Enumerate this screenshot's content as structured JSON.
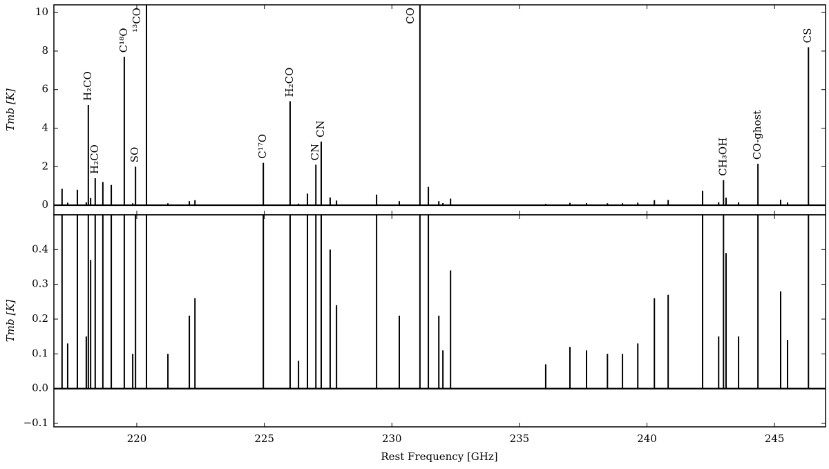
{
  "chart_data": {
    "type": "stem",
    "xlabel": "Rest Frequency [GHz]",
    "xlim": [
      216.75,
      247.0
    ],
    "xticks": [
      220,
      225,
      230,
      235,
      240,
      245
    ],
    "x": [
      217.07,
      217.29,
      217.67,
      218.02,
      218.1,
      218.19,
      218.37,
      218.67,
      219.0,
      219.51,
      219.84,
      219.95,
      220.38,
      221.22,
      222.06,
      222.28,
      224.96,
      226.01,
      226.34,
      226.69,
      227.02,
      227.23,
      227.58,
      227.83,
      229.4,
      230.29,
      231.1,
      231.43,
      231.84,
      232.0,
      232.3,
      236.03,
      236.98,
      237.63,
      238.45,
      239.04,
      239.64,
      240.29,
      240.83,
      242.18,
      242.81,
      243.0,
      243.1,
      243.59,
      244.35,
      245.24,
      245.51,
      246.33
    ],
    "values": [
      0.85,
      0.13,
      0.8,
      0.15,
      5.2,
      0.37,
      1.4,
      1.2,
      1.05,
      7.7,
      0.1,
      2.0,
      10.4,
      0.1,
      0.21,
      0.26,
      2.2,
      5.4,
      0.08,
      0.6,
      2.1,
      3.3,
      0.4,
      0.24,
      0.55,
      0.21,
      10.4,
      0.95,
      0.21,
      0.11,
      0.34,
      0.07,
      0.12,
      0.11,
      0.1,
      0.1,
      0.13,
      0.26,
      0.27,
      0.75,
      0.15,
      1.3,
      0.39,
      0.15,
      2.15,
      0.28,
      0.14,
      8.2
    ],
    "line_labels": [
      null,
      null,
      null,
      null,
      "H₂CO",
      null,
      "H₂CO",
      null,
      null,
      "C¹⁸O",
      null,
      "SO",
      "¹³CO",
      null,
      null,
      null,
      "C¹⁷O",
      "H₂CO",
      null,
      null,
      "CN",
      "CN",
      null,
      null,
      null,
      null,
      "CO",
      null,
      null,
      null,
      null,
      null,
      null,
      null,
      null,
      null,
      null,
      null,
      null,
      null,
      null,
      "CH₃OH",
      null,
      null,
      "CO-ghost",
      null,
      null,
      "CS"
    ],
    "color": "#000000",
    "panels": [
      {
        "ylabel": "Tmb [K]",
        "ylim": [
          -0.5,
          10.4
        ],
        "yticks": [
          0,
          2,
          4,
          6,
          8,
          10
        ]
      },
      {
        "ylabel": "Tmb [K]",
        "ylim": [
          -0.11,
          0.5
        ],
        "yticks": [
          {
            "value": -0.1,
            "label": "−0.1"
          },
          {
            "value": 0,
            "label": "0.0"
          },
          0.1,
          0.2,
          0.3,
          0.4
        ]
      }
    ]
  }
}
